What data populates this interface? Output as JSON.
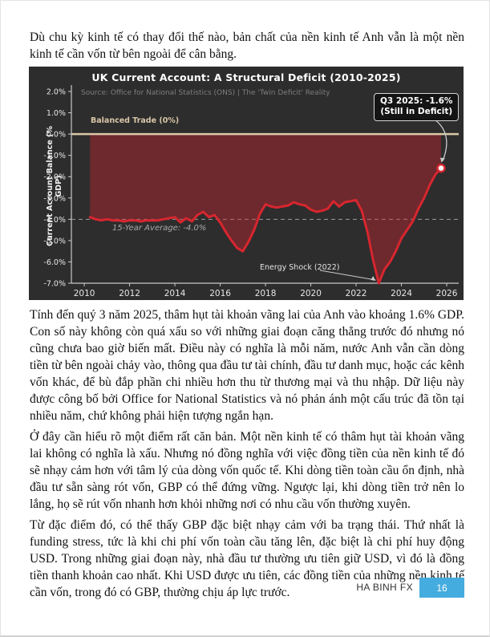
{
  "page": {
    "intro": "Dù chu kỳ kinh tế có thay đổi thế nào, bản chất của nền kinh tế Anh vẫn là một nền kinh tế cần vốn từ bên ngoài để cân bằng.",
    "paragraphs": [
      "Tính đến quý 3 năm 2025, thâm hụt tài khoản vãng lai của Anh vào khoảng 1.6% GDP. Con số này không còn quá xấu so với những giai đoạn căng thẳng trước đó nhưng nó cũng chưa bao giờ biến mất. Điều này có nghĩa là mỗi năm, nước Anh vẫn cần dòng tiền từ bên ngoài chảy vào, thông qua đầu tư tài chính, đầu tư danh mục, hoặc các kênh vốn khác, để bù đắp phần chi nhiều hơn thu từ thương mại và thu nhập. Dữ liệu này được công bố bởi Office for National Statistics và nó phản ánh một cấu trúc đã tồn tại nhiều năm, chứ không phải hiện tượng ngắn hạn.",
      "Ở đây cần hiểu rõ một điểm rất căn bản. Một nền kinh tế có thâm hụt tài khoản vãng lai không có nghĩa là xấu. Nhưng nó đồng nghĩa với việc đồng tiền của nền kinh tế đó sẽ nhạy cảm hơn với tâm lý của dòng vốn quốc tế. Khi dòng tiền toàn cầu ổn định, nhà đầu tư sẵn sàng rót vốn, GBP có thể đứng vững. Ngược lại, khi dòng tiền trở nên lo lắng, họ sẽ rút vốn nhanh hơn khỏi những nơi có nhu cầu vốn thường xuyên.",
      "Từ đặc điểm đó, có thể thấy GBP đặc biệt nhạy cảm với ba trạng thái. Thứ nhất là funding stress, tức là khi chi phí vốn toàn cầu tăng lên, đặc biệt là chi phí huy động USD. Trong những giai đoạn này, nhà đầu tư thường ưu tiên giữ USD, vì đó là đồng tiền thanh khoản cao nhất. Khi USD được ưu tiên, các đồng tiền của những nền kinh tế cần vốn, trong đó có GBP, thường chịu áp lực trước."
    ],
    "footer": {
      "brand": "HA BINH FX",
      "page_number": "16",
      "accent_color": "#45ACDF"
    }
  },
  "chart": {
    "title": "UK Current Account: A Structural Deficit (2010-2025)",
    "source": "Source: Office for National Statistics (ONS) | The 'Twin Deficit' Reality",
    "ylabel": "Current Account Balance (% GDP)",
    "balanced_trade_label": "Balanced Trade (0%)",
    "average_label": "15-Year Average: -4.0%",
    "energy_shock_label": "Energy Shock (2022)",
    "annotation_line1": "Q3 2025: -1.6%",
    "annotation_line2": "(Still in Deficit)",
    "colors": {
      "background": "#2d2d2d",
      "line": "#d7262f",
      "fill": "rgba(215,38,47,0.38)",
      "zero_line": "#d9c8a8",
      "average_line": "#9c9c9c",
      "ticks": "#e8e8e8",
      "spine": "#c9c9c9",
      "source_text": "#7d7d7d",
      "avg_text": "#a9a9a9",
      "energy_text": "#e3e3e3",
      "arrow": "#c9c9c9",
      "dot_fill": "#ffffff"
    }
  },
  "chart_data": {
    "type": "area",
    "title": "UK Current Account: A Structural Deficit (2010-2025)",
    "xlabel": "",
    "ylabel": "Current Account Balance (% GDP)",
    "xlim": [
      2009.43,
      2026.53
    ],
    "ylim": [
      -7.0,
      2.0
    ],
    "yticks": [
      2,
      1,
      0,
      -1,
      -2,
      -3,
      -4,
      -5,
      -6,
      -7
    ],
    "ytick_labels": [
      "2.0%",
      "1.0%",
      "0.0%",
      "-1.0%",
      "-2.0%",
      "-3.0%",
      "-4.0%",
      "-5.0%",
      "-6.0%",
      "-7.0%"
    ],
    "xticks": [
      2010,
      2012,
      2014,
      2016,
      2018,
      2020,
      2022,
      2024,
      2026
    ],
    "xtick_labels": [
      "2010",
      "2012",
      "2014",
      "2016",
      "2018",
      "2020",
      "2022",
      "2024",
      "2026"
    ],
    "grid": false,
    "baseline": {
      "value": 0,
      "label": "Balanced Trade (0%)"
    },
    "average": {
      "value": -4.0,
      "label": "15-Year Average: -4.0%"
    },
    "annotations": [
      {
        "text": "Q3 2025: -1.6% (Still in Deficit)",
        "x": 2025.75,
        "value": -1.6
      },
      {
        "text": "Energy Shock (2022)",
        "x": 2023.0,
        "value": -7.0
      }
    ],
    "x": [
      2010.25,
      2010.5,
      2010.75,
      2011.0,
      2011.25,
      2011.5,
      2011.75,
      2012.0,
      2012.25,
      2012.5,
      2012.75,
      2013.0,
      2013.25,
      2013.5,
      2013.75,
      2014.0,
      2014.25,
      2014.5,
      2014.75,
      2015.0,
      2015.25,
      2015.5,
      2015.75,
      2016.0,
      2016.25,
      2016.5,
      2016.75,
      2017.0,
      2017.25,
      2017.5,
      2017.75,
      2018.0,
      2018.25,
      2018.5,
      2018.75,
      2019.0,
      2019.25,
      2019.5,
      2019.75,
      2020.0,
      2020.25,
      2020.5,
      2020.75,
      2021.0,
      2021.25,
      2021.5,
      2021.75,
      2022.0,
      2022.25,
      2022.5,
      2022.75,
      2023.0,
      2023.25,
      2023.5,
      2023.75,
      2024.0,
      2024.25,
      2024.5,
      2024.75,
      2025.0,
      2025.25,
      2025.5,
      2025.75
    ],
    "values": [
      -3.9,
      -4.0,
      -4.05,
      -4.0,
      -4.05,
      -4.05,
      -4.1,
      -4.05,
      -4.05,
      -4.1,
      -4.05,
      -4.05,
      -4.05,
      -4.0,
      -3.95,
      -3.9,
      -4.15,
      -3.95,
      -4.1,
      -3.8,
      -3.65,
      -3.9,
      -3.8,
      -4.15,
      -4.6,
      -5.0,
      -5.35,
      -5.5,
      -5.05,
      -4.5,
      -3.75,
      -3.3,
      -3.4,
      -3.45,
      -3.4,
      -3.35,
      -3.2,
      -3.3,
      -3.35,
      -3.55,
      -3.65,
      -3.6,
      -3.5,
      -3.15,
      -3.4,
      -3.2,
      -3.15,
      -3.1,
      -3.6,
      -4.6,
      -5.9,
      -7.0,
      -6.35,
      -6.0,
      -5.5,
      -4.9,
      -4.5,
      -4.1,
      -3.5,
      -3.0,
      -2.4,
      -1.9,
      -1.6
    ],
    "endpoint": {
      "x": 2025.75,
      "value": -1.6
    }
  }
}
